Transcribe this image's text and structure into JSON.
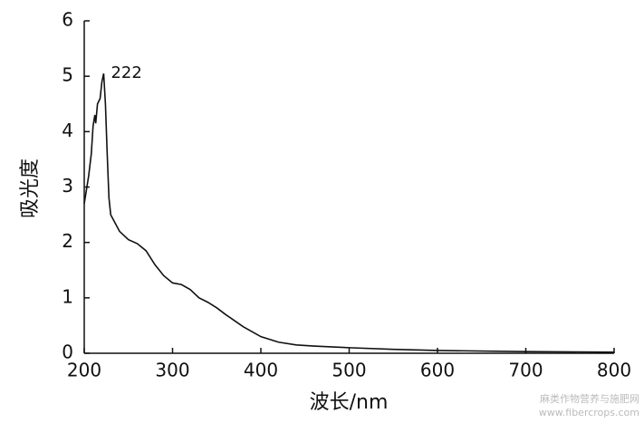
{
  "chart_data": {
    "type": "line",
    "x_label": "波长/nm",
    "y_label": "吸光度",
    "x": [
      200,
      205,
      208,
      210,
      212,
      213,
      215,
      218,
      220,
      222,
      224,
      226,
      228,
      230,
      240,
      250,
      260,
      270,
      280,
      290,
      300,
      310,
      320,
      330,
      340,
      350,
      360,
      380,
      400,
      420,
      440,
      460,
      500,
      550,
      600,
      700,
      800
    ],
    "values": [
      2.7,
      3.2,
      3.6,
      4.1,
      4.3,
      4.15,
      4.5,
      4.6,
      4.9,
      5.05,
      4.5,
      3.6,
      2.8,
      2.5,
      2.2,
      2.05,
      1.98,
      1.85,
      1.6,
      1.4,
      1.27,
      1.24,
      1.15,
      1.0,
      0.92,
      0.82,
      0.7,
      0.48,
      0.3,
      0.2,
      0.15,
      0.13,
      0.1,
      0.07,
      0.05,
      0.03,
      0.02
    ],
    "color": "#111111",
    "xlim": [
      200,
      800
    ],
    "xticks": [
      200,
      300,
      400,
      500,
      600,
      700,
      800
    ],
    "ylim": [
      0,
      6
    ],
    "yticks": [
      0,
      1,
      2,
      3,
      4,
      5,
      6
    ],
    "annotations": [
      {
        "text": "222",
        "x": 222,
        "y": 5.05
      }
    ],
    "watermark": [
      "麻类作物营养与施肥网",
      "www.fibercrops.com"
    ]
  }
}
